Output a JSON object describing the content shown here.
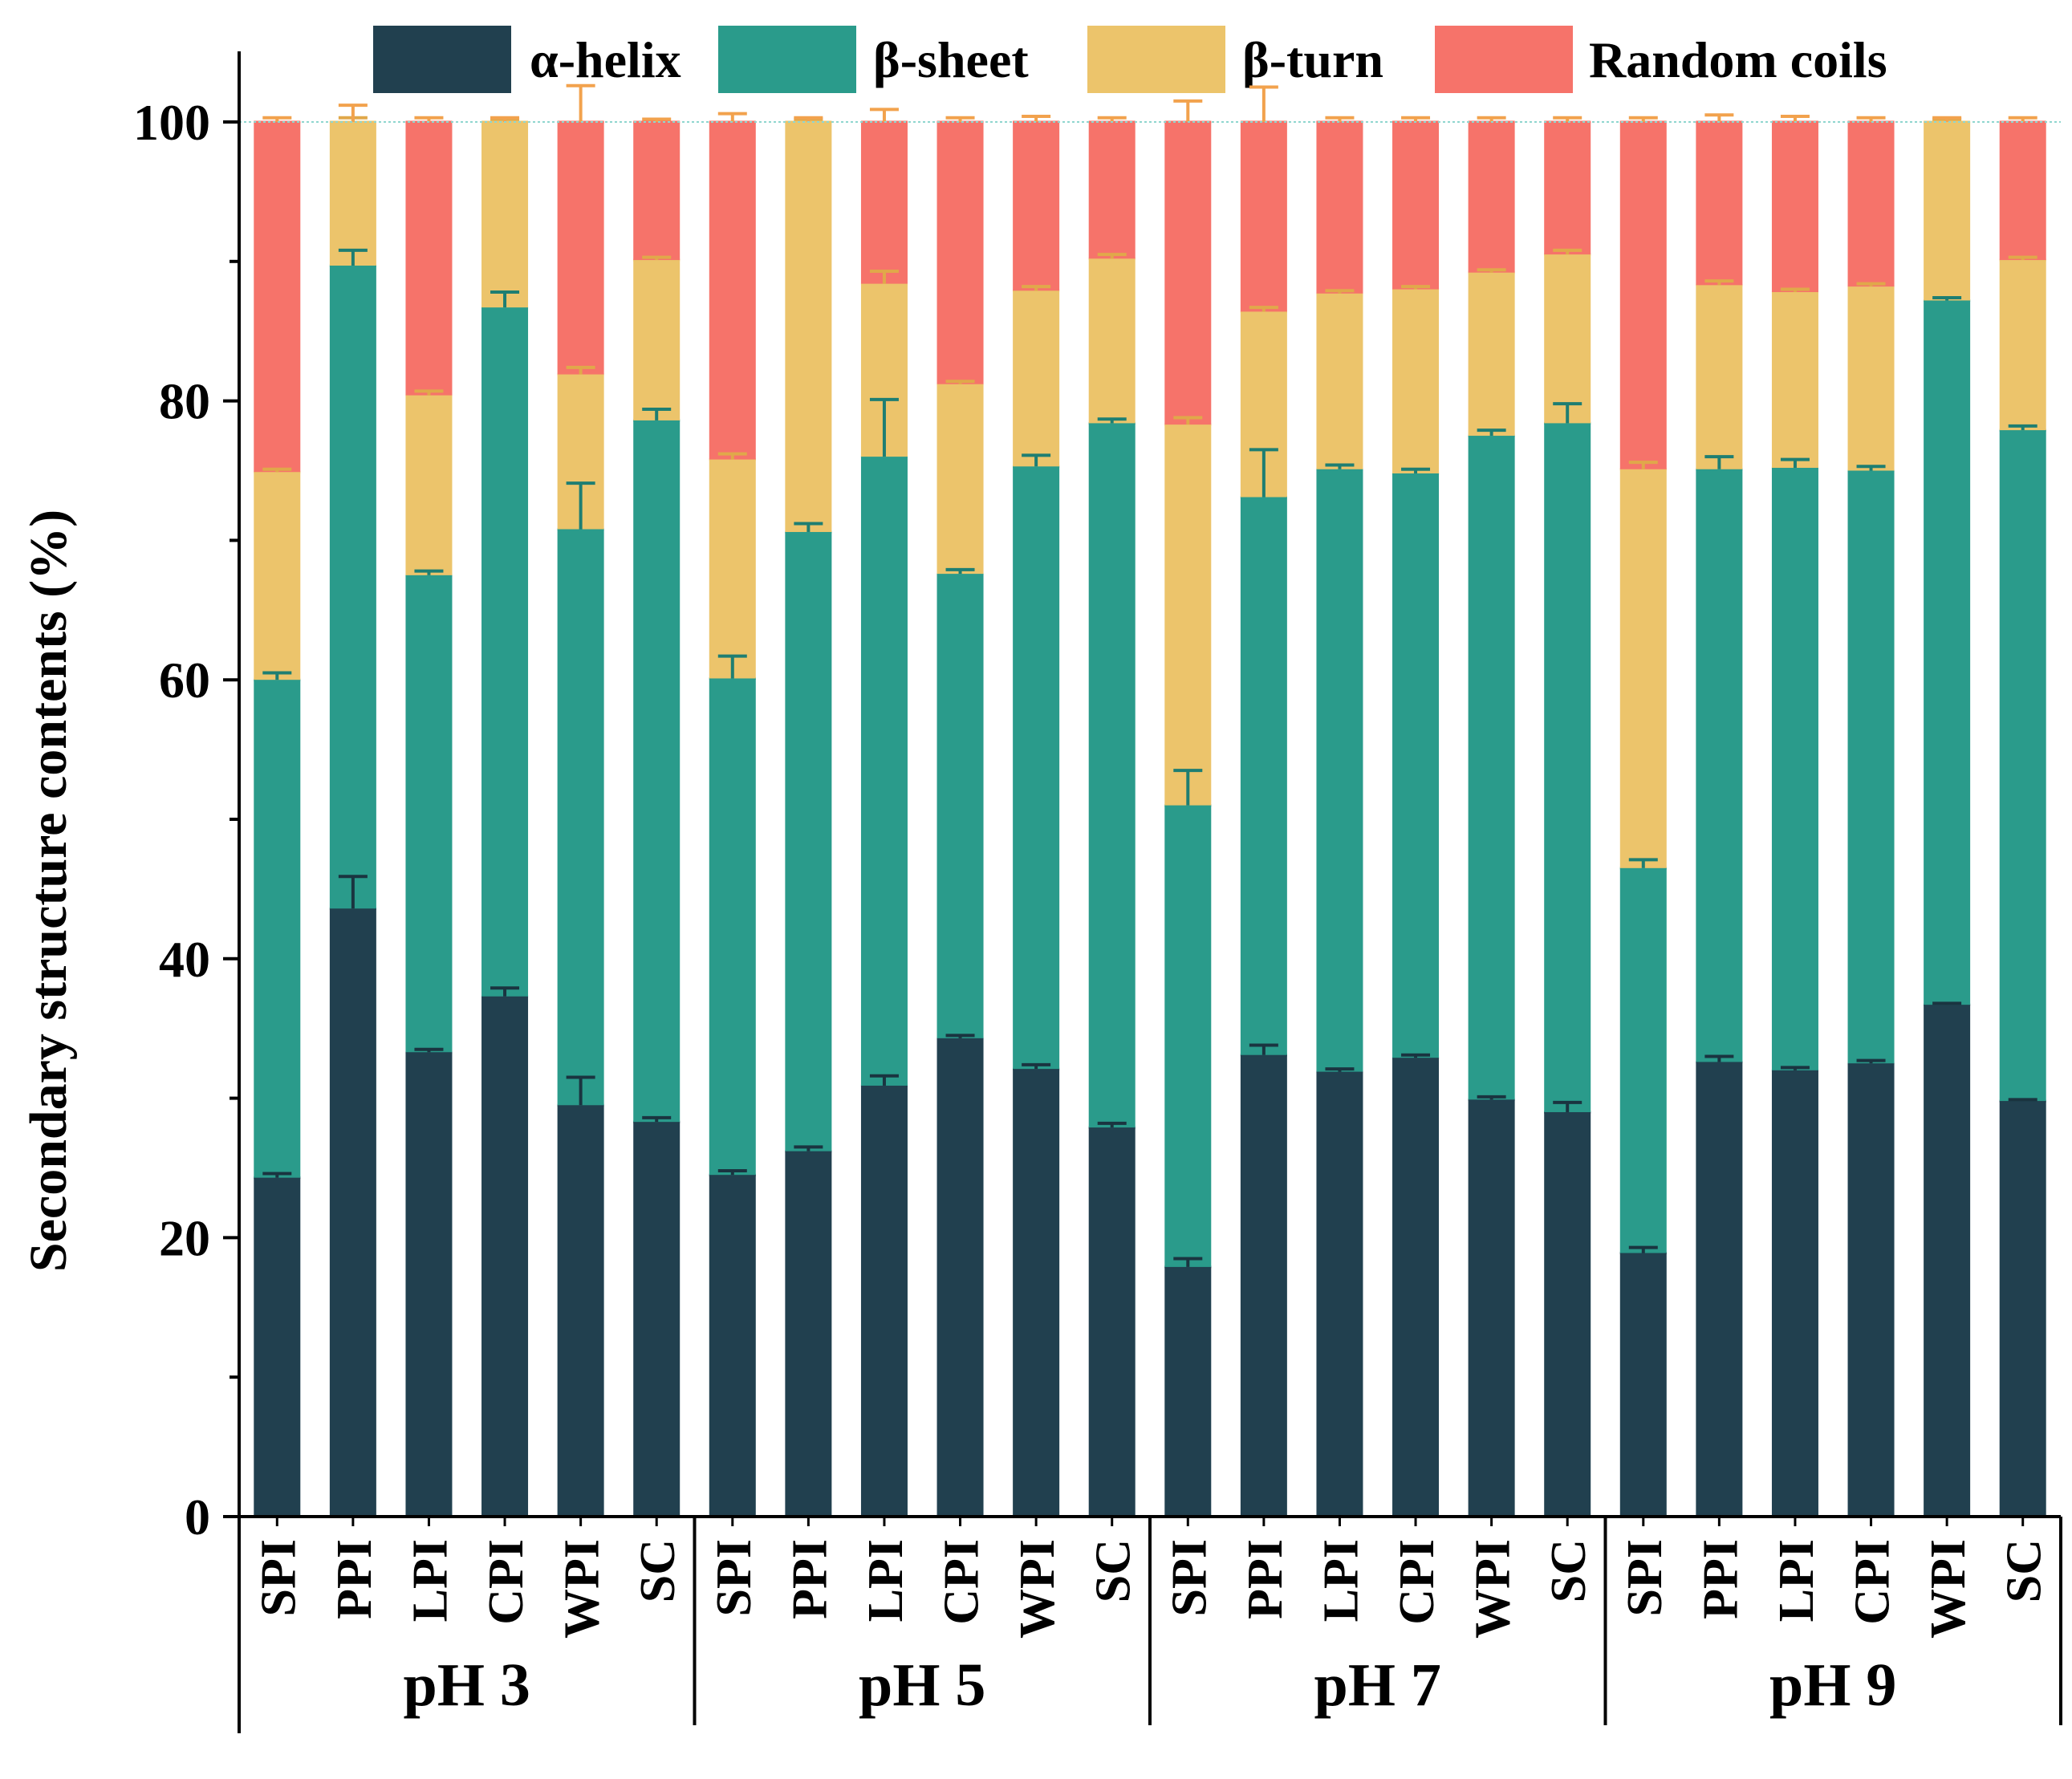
{
  "chart_data": {
    "type": "bar",
    "stacked": true,
    "title": "",
    "ylabel": "Secondary structure contents (%)",
    "xlabel": "",
    "ylim": [
      0,
      100
    ],
    "yticks": [
      0,
      20,
      40,
      60,
      80,
      100
    ],
    "legend_position": "top",
    "groups": [
      "pH 3",
      "pH 5",
      "pH 7",
      "pH 9"
    ],
    "categories": [
      "SPI",
      "PPI",
      "LPI",
      "CPI",
      "WPI",
      "SC"
    ],
    "series": [
      {
        "name": "α-helix",
        "color": "#21404f",
        "values": [
          [
            24.3,
            43.6,
            33.3,
            37.3,
            29.5,
            28.3
          ],
          [
            24.5,
            26.2,
            30.9,
            34.3,
            32.1,
            27.9
          ],
          [
            17.9,
            33.1,
            31.9,
            32.9,
            29.9,
            29.0
          ],
          [
            18.9,
            32.6,
            32.0,
            32.5,
            36.7,
            29.8
          ]
        ],
        "errors": [
          [
            0.3,
            2.3,
            0.2,
            0.6,
            2.0,
            0.3
          ],
          [
            0.3,
            0.3,
            0.7,
            0.2,
            0.3,
            0.3
          ],
          [
            0.6,
            0.7,
            0.2,
            0.2,
            0.2,
            0.7
          ],
          [
            0.4,
            0.4,
            0.2,
            0.2,
            0.1,
            0.1
          ]
        ]
      },
      {
        "name": "β-sheet",
        "color": "#2a9b8b",
        "values": [
          [
            35.7,
            46.1,
            34.2,
            49.4,
            41.3,
            50.3
          ],
          [
            35.6,
            44.4,
            45.1,
            33.3,
            43.2,
            50.5
          ],
          [
            33.1,
            40.0,
            43.2,
            41.9,
            47.6,
            49.4
          ],
          [
            27.6,
            42.5,
            43.2,
            42.5,
            50.5,
            48.1
          ]
        ],
        "errors": [
          [
            0.5,
            1.1,
            0.3,
            1.1,
            3.3,
            0.8
          ],
          [
            1.6,
            0.6,
            4.1,
            0.3,
            0.8,
            0.3
          ],
          [
            2.5,
            3.4,
            0.3,
            0.3,
            0.4,
            1.4
          ],
          [
            0.6,
            0.9,
            0.6,
            0.3,
            0.2,
            0.3
          ]
        ]
      },
      {
        "name": "β-turn",
        "color": "#ecc46b",
        "values": [
          [
            14.9,
            10.3,
            12.9,
            13.3,
            11.1,
            11.5
          ],
          [
            15.7,
            29.4,
            12.4,
            13.6,
            12.6,
            11.8
          ],
          [
            27.3,
            13.3,
            12.6,
            13.2,
            11.7,
            12.1
          ],
          [
            28.6,
            13.2,
            12.6,
            13.2,
            12.8,
            12.2
          ]
        ],
        "errors": [
          [
            0.2,
            0.3,
            0.3,
            0.2,
            0.5,
            0.2
          ],
          [
            0.4,
            0.2,
            0.9,
            0.2,
            0.3,
            0.3
          ],
          [
            0.5,
            0.3,
            0.2,
            0.2,
            0.2,
            0.3
          ],
          [
            0.5,
            0.3,
            0.2,
            0.2,
            0.2,
            0.2
          ]
        ]
      },
      {
        "name": "Random coils",
        "color": "#f6736a",
        "values": [
          [
            25.1,
            0.0,
            19.6,
            0.0,
            18.1,
            9.9
          ],
          [
            24.2,
            0.0,
            11.6,
            18.8,
            12.1,
            9.8
          ],
          [
            21.7,
            13.6,
            12.3,
            12.0,
            10.8,
            9.5
          ],
          [
            24.9,
            11.7,
            12.2,
            11.8,
            0.0,
            9.9
          ]
        ],
        "errors": [
          [
            0.3,
            1.2,
            0.3,
            0.3,
            2.6,
            0.2
          ],
          [
            0.6,
            0.3,
            0.9,
            0.3,
            0.4,
            0.3
          ],
          [
            1.5,
            2.5,
            0.3,
            0.3,
            0.3,
            0.3
          ],
          [
            0.3,
            0.5,
            0.4,
            0.3,
            0.3,
            0.3
          ]
        ]
      }
    ]
  }
}
